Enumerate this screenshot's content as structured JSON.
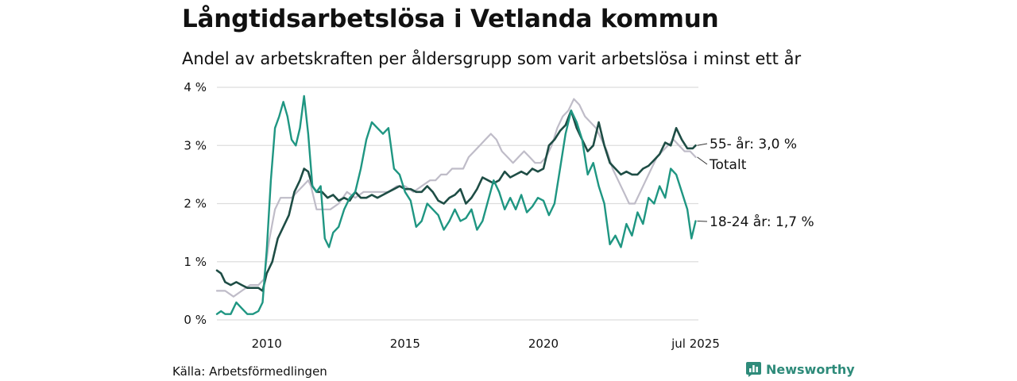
{
  "title": "Långtidsarbetslösa i Vetlanda kommun",
  "subtitle": "Andel av arbetskraften per åldersgrupp som varit arbetslösa i minst ett år",
  "source": "Källa: Arbetsförmedlingen",
  "brand": "Newsworthy",
  "icon": "bar-chart-icon",
  "colors": {
    "series_55": "#1e4d45",
    "series_18_24": "#1f9682",
    "series_total": "#bfbcc8",
    "grid": "#dddddd",
    "brand": "#2e8b7a"
  },
  "chart_data": {
    "type": "line",
    "x_unit": "year (decimal, monthly data)",
    "xlim": [
      2008.2,
      2025.6
    ],
    "ylim": [
      0,
      4
    ],
    "y_ticks": [
      "0 %",
      "1 %",
      "2 %",
      "3 %",
      "4 %"
    ],
    "x_ticks": [
      "2010",
      "2015",
      "2020",
      "jul 2025"
    ],
    "x_tick_values": [
      2010,
      2015,
      2020,
      2025.5
    ],
    "grid": "horizontal",
    "legend": "direct labels at line ends",
    "series": [
      {
        "key": "total",
        "label": "Totalt",
        "data": [
          [
            2008.2,
            0.5
          ],
          [
            2008.5,
            0.5
          ],
          [
            2008.8,
            0.4
          ],
          [
            2009.1,
            0.5
          ],
          [
            2009.4,
            0.6
          ],
          [
            2009.7,
            0.6
          ],
          [
            2009.9,
            0.7
          ],
          [
            2010.1,
            1.4
          ],
          [
            2010.3,
            1.9
          ],
          [
            2010.5,
            2.1
          ],
          [
            2010.7,
            2.1
          ],
          [
            2010.9,
            2.1
          ],
          [
            2011.1,
            2.2
          ],
          [
            2011.3,
            2.3
          ],
          [
            2011.5,
            2.4
          ],
          [
            2011.6,
            2.3
          ],
          [
            2011.8,
            1.9
          ],
          [
            2012.0,
            1.9
          ],
          [
            2012.3,
            1.9
          ],
          [
            2012.6,
            2.0
          ],
          [
            2012.9,
            2.2
          ],
          [
            2013.2,
            2.1
          ],
          [
            2013.5,
            2.2
          ],
          [
            2013.8,
            2.2
          ],
          [
            2014.1,
            2.2
          ],
          [
            2014.4,
            2.2
          ],
          [
            2014.7,
            2.3
          ],
          [
            2015.0,
            2.3
          ],
          [
            2015.3,
            2.2
          ],
          [
            2015.6,
            2.3
          ],
          [
            2015.9,
            2.4
          ],
          [
            2016.1,
            2.4
          ],
          [
            2016.3,
            2.5
          ],
          [
            2016.5,
            2.5
          ],
          [
            2016.7,
            2.6
          ],
          [
            2016.9,
            2.6
          ],
          [
            2017.1,
            2.6
          ],
          [
            2017.3,
            2.8
          ],
          [
            2017.5,
            2.9
          ],
          [
            2017.7,
            3.0
          ],
          [
            2017.9,
            3.1
          ],
          [
            2018.1,
            3.2
          ],
          [
            2018.3,
            3.1
          ],
          [
            2018.5,
            2.9
          ],
          [
            2018.7,
            2.8
          ],
          [
            2018.9,
            2.7
          ],
          [
            2019.1,
            2.8
          ],
          [
            2019.3,
            2.9
          ],
          [
            2019.5,
            2.8
          ],
          [
            2019.7,
            2.7
          ],
          [
            2019.9,
            2.7
          ],
          [
            2020.1,
            2.8
          ],
          [
            2020.3,
            3.0
          ],
          [
            2020.5,
            3.3
          ],
          [
            2020.7,
            3.5
          ],
          [
            2020.9,
            3.6
          ],
          [
            2021.1,
            3.8
          ],
          [
            2021.3,
            3.7
          ],
          [
            2021.5,
            3.5
          ],
          [
            2021.7,
            3.4
          ],
          [
            2021.9,
            3.3
          ],
          [
            2022.1,
            3.1
          ],
          [
            2022.3,
            2.9
          ],
          [
            2022.5,
            2.6
          ],
          [
            2022.7,
            2.4
          ],
          [
            2022.9,
            2.2
          ],
          [
            2023.1,
            2.0
          ],
          [
            2023.3,
            2.0
          ],
          [
            2023.5,
            2.2
          ],
          [
            2023.7,
            2.4
          ],
          [
            2023.9,
            2.6
          ],
          [
            2024.1,
            2.8
          ],
          [
            2024.3,
            2.9
          ],
          [
            2024.5,
            3.0
          ],
          [
            2024.7,
            3.1
          ],
          [
            2024.9,
            3.0
          ],
          [
            2025.1,
            2.9
          ],
          [
            2025.3,
            2.9
          ],
          [
            2025.5,
            2.8
          ]
        ]
      },
      {
        "key": "55",
        "label": "55- år: 3,0 %",
        "data": [
          [
            2008.2,
            0.85
          ],
          [
            2008.35,
            0.8
          ],
          [
            2008.5,
            0.65
          ],
          [
            2008.7,
            0.6
          ],
          [
            2008.9,
            0.65
          ],
          [
            2009.1,
            0.6
          ],
          [
            2009.3,
            0.55
          ],
          [
            2009.5,
            0.55
          ],
          [
            2009.7,
            0.55
          ],
          [
            2009.85,
            0.5
          ],
          [
            2010.0,
            0.8
          ],
          [
            2010.2,
            1.0
          ],
          [
            2010.4,
            1.4
          ],
          [
            2010.6,
            1.6
          ],
          [
            2010.8,
            1.8
          ],
          [
            2011.0,
            2.2
          ],
          [
            2011.2,
            2.4
          ],
          [
            2011.35,
            2.6
          ],
          [
            2011.5,
            2.55
          ],
          [
            2011.65,
            2.3
          ],
          [
            2011.8,
            2.2
          ],
          [
            2012.0,
            2.2
          ],
          [
            2012.2,
            2.1
          ],
          [
            2012.4,
            2.15
          ],
          [
            2012.6,
            2.05
          ],
          [
            2012.8,
            2.1
          ],
          [
            2013.0,
            2.05
          ],
          [
            2013.2,
            2.2
          ],
          [
            2013.4,
            2.1
          ],
          [
            2013.6,
            2.1
          ],
          [
            2013.8,
            2.15
          ],
          [
            2014.0,
            2.1
          ],
          [
            2014.2,
            2.15
          ],
          [
            2014.4,
            2.2
          ],
          [
            2014.6,
            2.25
          ],
          [
            2014.8,
            2.3
          ],
          [
            2015.0,
            2.25
          ],
          [
            2015.2,
            2.25
          ],
          [
            2015.4,
            2.2
          ],
          [
            2015.6,
            2.2
          ],
          [
            2015.8,
            2.3
          ],
          [
            2016.0,
            2.2
          ],
          [
            2016.2,
            2.05
          ],
          [
            2016.4,
            2.0
          ],
          [
            2016.6,
            2.1
          ],
          [
            2016.8,
            2.15
          ],
          [
            2017.0,
            2.25
          ],
          [
            2017.2,
            2.0
          ],
          [
            2017.4,
            2.1
          ],
          [
            2017.6,
            2.25
          ],
          [
            2017.8,
            2.45
          ],
          [
            2018.0,
            2.4
          ],
          [
            2018.2,
            2.35
          ],
          [
            2018.4,
            2.4
          ],
          [
            2018.6,
            2.55
          ],
          [
            2018.8,
            2.45
          ],
          [
            2019.0,
            2.5
          ],
          [
            2019.2,
            2.55
          ],
          [
            2019.4,
            2.5
          ],
          [
            2019.6,
            2.6
          ],
          [
            2019.8,
            2.55
          ],
          [
            2020.0,
            2.6
          ],
          [
            2020.2,
            3.0
          ],
          [
            2020.4,
            3.1
          ],
          [
            2020.6,
            3.25
          ],
          [
            2020.8,
            3.35
          ],
          [
            2021.0,
            3.6
          ],
          [
            2021.2,
            3.3
          ],
          [
            2021.4,
            3.1
          ],
          [
            2021.6,
            2.9
          ],
          [
            2021.8,
            3.0
          ],
          [
            2022.0,
            3.4
          ],
          [
            2022.2,
            3.0
          ],
          [
            2022.4,
            2.7
          ],
          [
            2022.6,
            2.6
          ],
          [
            2022.8,
            2.5
          ],
          [
            2023.0,
            2.55
          ],
          [
            2023.2,
            2.5
          ],
          [
            2023.4,
            2.5
          ],
          [
            2023.6,
            2.6
          ],
          [
            2023.8,
            2.65
          ],
          [
            2024.0,
            2.75
          ],
          [
            2024.2,
            2.85
          ],
          [
            2024.4,
            3.05
          ],
          [
            2024.6,
            3.0
          ],
          [
            2024.8,
            3.3
          ],
          [
            2025.0,
            3.1
          ],
          [
            2025.2,
            2.95
          ],
          [
            2025.4,
            2.95
          ],
          [
            2025.5,
            3.0
          ]
        ]
      },
      {
        "key": "18-24",
        "label": "18-24 år: 1,7 %",
        "data": [
          [
            2008.2,
            0.1
          ],
          [
            2008.35,
            0.15
          ],
          [
            2008.5,
            0.1
          ],
          [
            2008.7,
            0.1
          ],
          [
            2008.9,
            0.3
          ],
          [
            2009.1,
            0.2
          ],
          [
            2009.3,
            0.1
          ],
          [
            2009.5,
            0.1
          ],
          [
            2009.7,
            0.15
          ],
          [
            2009.85,
            0.3
          ],
          [
            2010.0,
            1.2
          ],
          [
            2010.15,
            2.4
          ],
          [
            2010.3,
            3.3
          ],
          [
            2010.45,
            3.5
          ],
          [
            2010.6,
            3.75
          ],
          [
            2010.75,
            3.5
          ],
          [
            2010.9,
            3.1
          ],
          [
            2011.05,
            3.0
          ],
          [
            2011.2,
            3.3
          ],
          [
            2011.35,
            3.85
          ],
          [
            2011.5,
            3.2
          ],
          [
            2011.65,
            2.3
          ],
          [
            2011.8,
            2.2
          ],
          [
            2011.95,
            2.3
          ],
          [
            2012.1,
            1.4
          ],
          [
            2012.25,
            1.25
          ],
          [
            2012.4,
            1.5
          ],
          [
            2012.6,
            1.6
          ],
          [
            2012.8,
            1.9
          ],
          [
            2013.0,
            2.1
          ],
          [
            2013.2,
            2.2
          ],
          [
            2013.4,
            2.6
          ],
          [
            2013.6,
            3.1
          ],
          [
            2013.8,
            3.4
          ],
          [
            2014.0,
            3.3
          ],
          [
            2014.2,
            3.2
          ],
          [
            2014.4,
            3.3
          ],
          [
            2014.6,
            2.6
          ],
          [
            2014.8,
            2.5
          ],
          [
            2015.0,
            2.2
          ],
          [
            2015.2,
            2.05
          ],
          [
            2015.4,
            1.6
          ],
          [
            2015.6,
            1.7
          ],
          [
            2015.8,
            2.0
          ],
          [
            2016.0,
            1.9
          ],
          [
            2016.2,
            1.8
          ],
          [
            2016.4,
            1.55
          ],
          [
            2016.6,
            1.7
          ],
          [
            2016.8,
            1.9
          ],
          [
            2017.0,
            1.7
          ],
          [
            2017.2,
            1.75
          ],
          [
            2017.4,
            1.9
          ],
          [
            2017.6,
            1.55
          ],
          [
            2017.8,
            1.7
          ],
          [
            2018.0,
            2.05
          ],
          [
            2018.2,
            2.4
          ],
          [
            2018.4,
            2.2
          ],
          [
            2018.6,
            1.9
          ],
          [
            2018.8,
            2.1
          ],
          [
            2019.0,
            1.9
          ],
          [
            2019.2,
            2.15
          ],
          [
            2019.4,
            1.85
          ],
          [
            2019.6,
            1.95
          ],
          [
            2019.8,
            2.1
          ],
          [
            2020.0,
            2.05
          ],
          [
            2020.2,
            1.8
          ],
          [
            2020.4,
            2.0
          ],
          [
            2020.6,
            2.6
          ],
          [
            2020.8,
            3.2
          ],
          [
            2021.0,
            3.6
          ],
          [
            2021.2,
            3.4
          ],
          [
            2021.4,
            3.1
          ],
          [
            2021.6,
            2.5
          ],
          [
            2021.8,
            2.7
          ],
          [
            2022.0,
            2.3
          ],
          [
            2022.2,
            2.0
          ],
          [
            2022.4,
            1.3
          ],
          [
            2022.6,
            1.45
          ],
          [
            2022.8,
            1.25
          ],
          [
            2023.0,
            1.65
          ],
          [
            2023.2,
            1.45
          ],
          [
            2023.4,
            1.85
          ],
          [
            2023.6,
            1.65
          ],
          [
            2023.8,
            2.1
          ],
          [
            2024.0,
            2.0
          ],
          [
            2024.2,
            2.3
          ],
          [
            2024.4,
            2.1
          ],
          [
            2024.6,
            2.6
          ],
          [
            2024.8,
            2.5
          ],
          [
            2025.0,
            2.2
          ],
          [
            2025.2,
            1.9
          ],
          [
            2025.35,
            1.4
          ],
          [
            2025.5,
            1.7
          ]
        ]
      }
    ]
  }
}
